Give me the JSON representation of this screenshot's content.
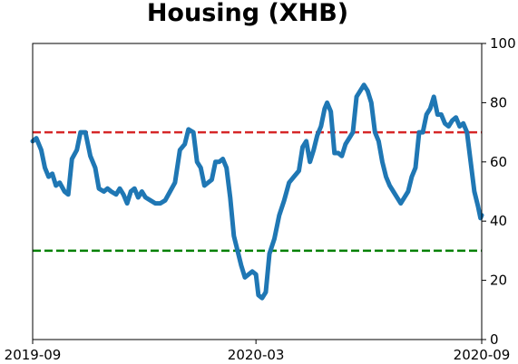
{
  "chart_data": {
    "type": "line",
    "title": "Housing (XHB)",
    "xlabel": "",
    "ylabel": "",
    "x_range": [
      "2019-09-01",
      "2020-09-01"
    ],
    "ylim": [
      0,
      100
    ],
    "y_axis_side": "right",
    "y_ticks": [
      0,
      20,
      40,
      60,
      80,
      100
    ],
    "x_ticks": [
      {
        "date": "2019-09-01",
        "label": "2019-09"
      },
      {
        "date": "2020-03-01",
        "label": "2020-03"
      },
      {
        "date": "2020-09-01",
        "label": "2020-09"
      }
    ],
    "grid": false,
    "legend": "none",
    "reference_lines": [
      {
        "y": 70,
        "color": "#d62728",
        "style": "dashed"
      },
      {
        "y": 30,
        "color": "#008000",
        "style": "dashed"
      }
    ],
    "series": [
      {
        "color": "#1f77b4",
        "points": [
          [
            "2019-09-01",
            67
          ],
          [
            "2019-09-04",
            68
          ],
          [
            "2019-09-08",
            64
          ],
          [
            "2019-09-11",
            58
          ],
          [
            "2019-09-14",
            55
          ],
          [
            "2019-09-17",
            56
          ],
          [
            "2019-09-20",
            52
          ],
          [
            "2019-09-23",
            53
          ],
          [
            "2019-09-27",
            50
          ],
          [
            "2019-09-30",
            49
          ],
          [
            "2019-10-03",
            61
          ],
          [
            "2019-10-07",
            64
          ],
          [
            "2019-10-10",
            70
          ],
          [
            "2019-10-14",
            70
          ],
          [
            "2019-10-18",
            62
          ],
          [
            "2019-10-22",
            58
          ],
          [
            "2019-10-25",
            51
          ],
          [
            "2019-10-29",
            50
          ],
          [
            "2019-11-01",
            51
          ],
          [
            "2019-11-04",
            50
          ],
          [
            "2019-11-08",
            49
          ],
          [
            "2019-11-11",
            51
          ],
          [
            "2019-11-14",
            49
          ],
          [
            "2019-11-17",
            46
          ],
          [
            "2019-11-20",
            50
          ],
          [
            "2019-11-23",
            51
          ],
          [
            "2019-11-26",
            48
          ],
          [
            "2019-11-29",
            50
          ],
          [
            "2019-12-02",
            48
          ],
          [
            "2019-12-06",
            47
          ],
          [
            "2019-12-10",
            46
          ],
          [
            "2019-12-14",
            46
          ],
          [
            "2019-12-18",
            47
          ],
          [
            "2019-12-22",
            50
          ],
          [
            "2019-12-26",
            53
          ],
          [
            "2019-12-30",
            64
          ],
          [
            "2020-01-03",
            66
          ],
          [
            "2020-01-06",
            71
          ],
          [
            "2020-01-10",
            70
          ],
          [
            "2020-01-13",
            60
          ],
          [
            "2020-01-16",
            58
          ],
          [
            "2020-01-19",
            52
          ],
          [
            "2020-01-22",
            53
          ],
          [
            "2020-01-25",
            54
          ],
          [
            "2020-01-28",
            60
          ],
          [
            "2020-01-31",
            60
          ],
          [
            "2020-02-03",
            61
          ],
          [
            "2020-02-06",
            58
          ],
          [
            "2020-02-09",
            48
          ],
          [
            "2020-02-12",
            35
          ],
          [
            "2020-02-15",
            30
          ],
          [
            "2020-02-18",
            25
          ],
          [
            "2020-02-21",
            21
          ],
          [
            "2020-02-24",
            22
          ],
          [
            "2020-02-27",
            23
          ],
          [
            "2020-03-01",
            22
          ],
          [
            "2020-03-03",
            15
          ],
          [
            "2020-03-06",
            14
          ],
          [
            "2020-03-09",
            16
          ],
          [
            "2020-03-12",
            29
          ],
          [
            "2020-03-16",
            34
          ],
          [
            "2020-03-20",
            42
          ],
          [
            "2020-03-24",
            47
          ],
          [
            "2020-03-28",
            53
          ],
          [
            "2020-04-01",
            55
          ],
          [
            "2020-04-05",
            57
          ],
          [
            "2020-04-08",
            65
          ],
          [
            "2020-04-11",
            67
          ],
          [
            "2020-04-14",
            60
          ],
          [
            "2020-04-17",
            64
          ],
          [
            "2020-04-20",
            69
          ],
          [
            "2020-04-23",
            72
          ],
          [
            "2020-04-26",
            78
          ],
          [
            "2020-04-28",
            80
          ],
          [
            "2020-05-01",
            77
          ],
          [
            "2020-05-04",
            63
          ],
          [
            "2020-05-07",
            63
          ],
          [
            "2020-05-10",
            62
          ],
          [
            "2020-05-13",
            66
          ],
          [
            "2020-05-16",
            68
          ],
          [
            "2020-05-19",
            70
          ],
          [
            "2020-05-22",
            82
          ],
          [
            "2020-05-25",
            84
          ],
          [
            "2020-05-28",
            86
          ],
          [
            "2020-05-31",
            84
          ],
          [
            "2020-06-03",
            80
          ],
          [
            "2020-06-06",
            70
          ],
          [
            "2020-06-09",
            67
          ],
          [
            "2020-06-12",
            60
          ],
          [
            "2020-06-15",
            55
          ],
          [
            "2020-06-18",
            52
          ],
          [
            "2020-06-21",
            50
          ],
          [
            "2020-06-24",
            48
          ],
          [
            "2020-06-27",
            46
          ],
          [
            "2020-06-30",
            48
          ],
          [
            "2020-07-03",
            50
          ],
          [
            "2020-07-06",
            55
          ],
          [
            "2020-07-09",
            58
          ],
          [
            "2020-07-12",
            70
          ],
          [
            "2020-07-15",
            70
          ],
          [
            "2020-07-18",
            76
          ],
          [
            "2020-07-21",
            78
          ],
          [
            "2020-07-24",
            82
          ],
          [
            "2020-07-27",
            76
          ],
          [
            "2020-07-30",
            76
          ],
          [
            "2020-08-02",
            73
          ],
          [
            "2020-08-05",
            72
          ],
          [
            "2020-08-08",
            74
          ],
          [
            "2020-08-11",
            75
          ],
          [
            "2020-08-14",
            72
          ],
          [
            "2020-08-17",
            73
          ],
          [
            "2020-08-20",
            70
          ],
          [
            "2020-08-23",
            60
          ],
          [
            "2020-08-26",
            50
          ],
          [
            "2020-08-29",
            45
          ],
          [
            "2020-08-31",
            41
          ],
          [
            "2020-09-01",
            42
          ]
        ]
      }
    ]
  }
}
